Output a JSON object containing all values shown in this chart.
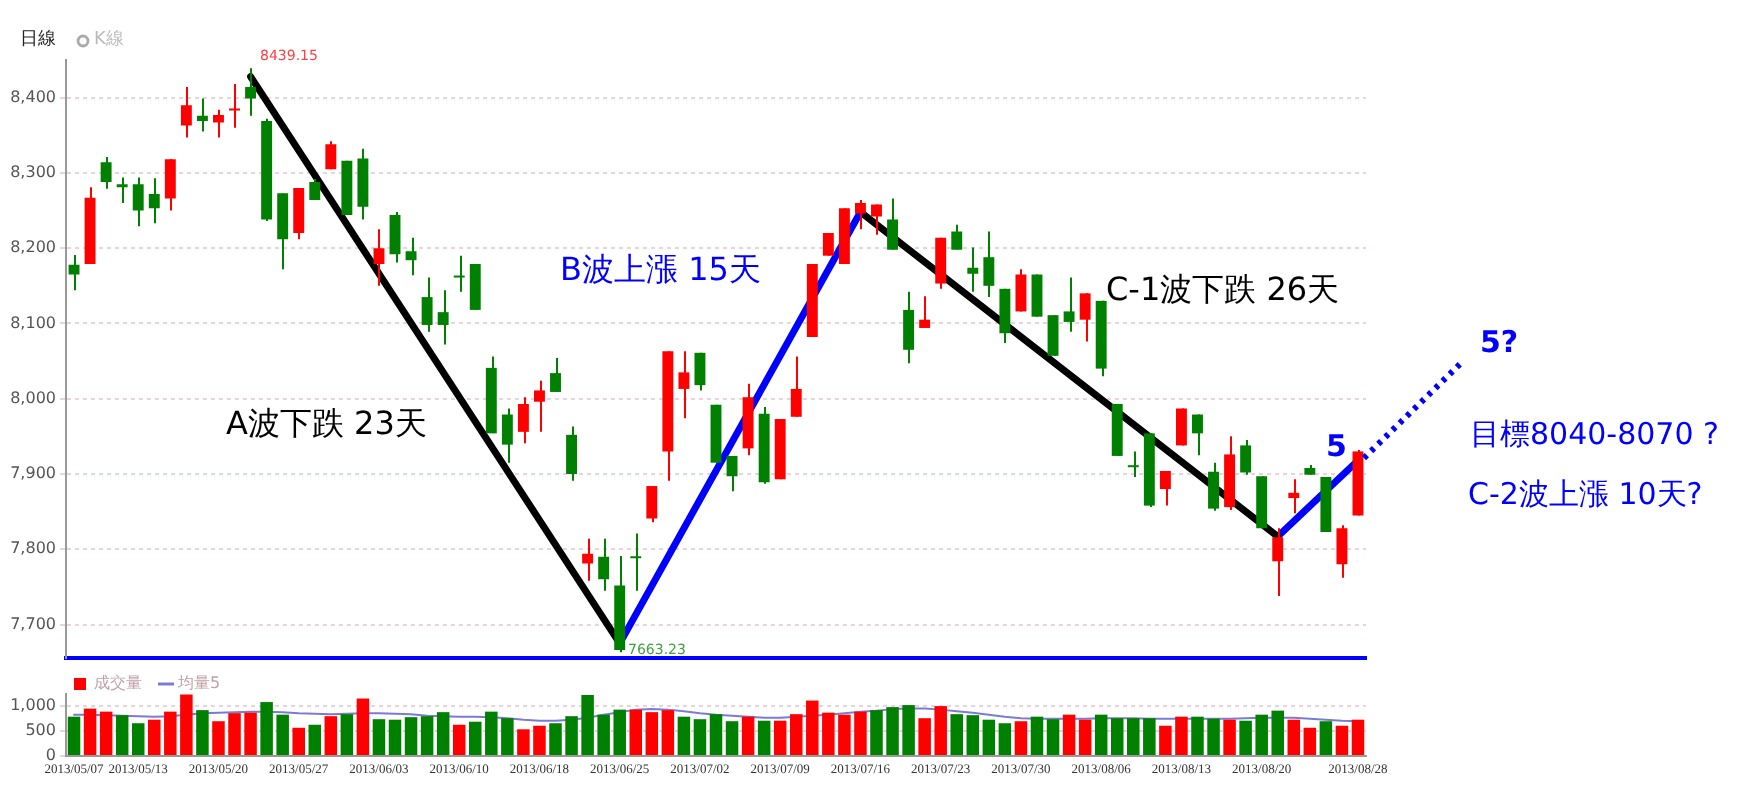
{
  "chart_data": [
    {
      "type": "candlestick",
      "title": "日線",
      "subtitle": "K線",
      "categories": [
        null,
        null,
        null,
        null,
        null,
        null,
        null,
        null,
        null,
        null,
        null,
        null,
        null,
        null,
        null,
        null,
        null,
        null,
        null,
        null,
        null,
        null,
        null,
        null,
        null,
        null,
        null,
        null,
        null,
        null,
        null,
        null,
        null,
        null,
        null,
        null,
        null,
        null,
        null,
        null,
        null,
        null,
        null,
        null,
        null,
        null,
        null,
        null,
        null,
        null,
        null,
        null,
        null,
        null,
        null,
        null,
        null,
        null,
        null,
        null,
        null,
        null,
        null,
        null,
        null,
        null,
        null,
        null,
        null,
        null,
        null,
        null,
        null,
        null,
        null,
        null,
        null,
        null,
        null,
        null,
        null
      ],
      "ohlc": [
        [
          8178,
          8191,
          8144,
          8165
        ],
        [
          8179,
          8281,
          8179,
          8267
        ],
        [
          8314,
          8321,
          8279,
          8288
        ],
        [
          8285,
          8294,
          8260,
          8281
        ],
        [
          8285,
          8294,
          8229,
          8250
        ],
        [
          8272,
          8293,
          8233,
          8253
        ],
        [
          8266,
          8318,
          8250,
          8318
        ],
        [
          8363,
          8414,
          8347,
          8390
        ],
        [
          8376,
          8399,
          8355,
          8369
        ],
        [
          8367,
          8384,
          8347,
          8377
        ],
        [
          8383,
          8418,
          8360,
          8384
        ],
        [
          8414,
          8439.15,
          8376,
          8399
        ],
        [
          8369,
          8372,
          8236,
          8238
        ],
        [
          8273,
          8273,
          8172,
          8212
        ],
        [
          8220,
          8280,
          8212,
          8280
        ],
        [
          8288,
          8292,
          8264,
          8264
        ],
        [
          8305,
          8342,
          8305,
          8338
        ],
        [
          8316,
          8316,
          8244,
          8244
        ],
        [
          8319,
          8332,
          8238,
          8255
        ],
        [
          8179,
          8225,
          8150,
          8200
        ],
        [
          8244,
          8248,
          8181,
          8192
        ],
        [
          8196,
          8214,
          8164,
          8184
        ],
        [
          8135,
          8161,
          8089,
          8098
        ],
        [
          8115,
          8144,
          8072,
          8098
        ],
        [
          8162,
          8190,
          8142,
          8161
        ],
        [
          8179,
          8179,
          8118,
          8118
        ],
        [
          8041,
          8056,
          7954,
          7954
        ],
        [
          7979,
          7987,
          7915,
          7939
        ],
        [
          7956,
          8002,
          7941,
          7993
        ],
        [
          7996,
          8024,
          7956,
          8011
        ],
        [
          8034,
          8054,
          8009,
          8009
        ],
        [
          7952,
          7963,
          7891,
          7900
        ],
        [
          7781,
          7814,
          7758,
          7794
        ],
        [
          7790,
          7814,
          7745,
          7760
        ],
        [
          7752,
          7791,
          7663.23,
          7666
        ],
        [
          7789,
          7821,
          7745,
          7788
        ],
        [
          7841,
          7884,
          7836,
          7884
        ],
        [
          7930,
          8063,
          7891,
          8063
        ],
        [
          8013,
          8063,
          7974,
          8035
        ],
        [
          8061,
          8061,
          8011,
          8018
        ],
        [
          7992,
          7992,
          7915,
          7915
        ],
        [
          7924,
          7924,
          7877,
          7897
        ],
        [
          7934,
          8020,
          7925,
          8002
        ],
        [
          7980,
          7989,
          7887,
          7889
        ],
        [
          7893,
          7973,
          7893,
          7973
        ],
        [
          7976,
          8056,
          7976,
          8013
        ],
        [
          8082,
          8179,
          8082,
          8179
        ],
        [
          8190,
          8220,
          8190,
          8220
        ],
        [
          8179,
          8253,
          8179,
          8253
        ],
        [
          8246,
          8264,
          8225,
          8260
        ],
        [
          8242,
          8258,
          8218,
          8258
        ],
        [
          8238,
          8266,
          8198,
          8198
        ],
        [
          8118,
          8142,
          8047,
          8065
        ],
        [
          8094,
          8136,
          8094,
          8105
        ],
        [
          8153,
          8214,
          8146,
          8214
        ],
        [
          8222,
          8231,
          8198,
          8198
        ],
        [
          8174,
          8201,
          8142,
          8166
        ],
        [
          8188,
          8222,
          8135,
          8150
        ],
        [
          8146,
          8146,
          8074,
          8087
        ],
        [
          8116,
          8172,
          8116,
          8165
        ],
        [
          8165,
          8165,
          8109,
          8109
        ],
        [
          8111,
          8111,
          8057,
          8057
        ],
        [
          8116,
          8161,
          8089,
          8102
        ],
        [
          8105,
          8140,
          8076,
          8140
        ],
        [
          8130,
          8130,
          8030,
          8040
        ],
        [
          7993,
          7993,
          7924,
          7924
        ],
        [
          7910,
          7930,
          7896,
          7909
        ],
        [
          7954,
          7954,
          7856,
          7858
        ],
        [
          7880,
          7904,
          7858,
          7904
        ],
        [
          7938,
          7987,
          7938,
          7987
        ],
        [
          7979,
          7979,
          7925,
          7954
        ],
        [
          7903,
          7915,
          7851,
          7854
        ],
        [
          7856,
          7950,
          7852,
          7926
        ],
        [
          7938,
          7945,
          7899,
          7902
        ],
        [
          7897,
          7897,
          7828,
          7828
        ],
        [
          7784,
          7828,
          7738,
          7816
        ],
        [
          7868,
          7893,
          7848,
          7875
        ],
        [
          7908,
          7912,
          7899,
          7899
        ],
        [
          7896,
          7896,
          7823,
          7823
        ],
        [
          7780,
          7832,
          7762,
          7828
        ],
        [
          7845,
          7932,
          7845,
          7930
        ]
      ],
      "colors": [
        "#008000",
        "#ff0000",
        "#008000",
        "#008000",
        "#008000",
        "#008000",
        "#ff0000",
        "#ff0000",
        "#008000",
        "#ff0000",
        "#ff0000",
        "#008000",
        "#008000",
        "#008000",
        "#ff0000",
        "#008000",
        "#ff0000",
        "#008000",
        "#008000",
        "#ff0000",
        "#008000",
        "#008000",
        "#008000",
        "#008000",
        "#008000",
        "#008000",
        "#008000",
        "#008000",
        "#ff0000",
        "#ff0000",
        "#008000",
        "#008000",
        "#ff0000",
        "#008000",
        "#008000",
        "#008000",
        "#ff0000",
        "#ff0000",
        "#ff0000",
        "#008000",
        "#008000",
        "#008000",
        "#ff0000",
        "#008000",
        "#ff0000",
        "#ff0000",
        "#ff0000",
        "#ff0000",
        "#ff0000",
        "#ff0000",
        "#ff0000",
        "#008000",
        "#008000",
        "#ff0000",
        "#ff0000",
        "#008000",
        "#008000",
        "#008000",
        "#008000",
        "#ff0000",
        "#008000",
        "#008000",
        "#008000",
        "#ff0000",
        "#008000",
        "#008000",
        "#008000",
        "#008000",
        "#ff0000",
        "#ff0000",
        "#008000",
        "#008000",
        "#ff0000",
        "#008000",
        "#008000",
        "#ff0000",
        "#ff0000",
        "#008000",
        "#008000",
        "#ff0000",
        "#ff0000"
      ],
      "series": [
        {
          "type": "line",
          "color": "#000000",
          "values": [
            null,
            null,
            null,
            null,
            null,
            null,
            null,
            null,
            null,
            null,
            null,
            8428,
            null,
            null,
            null,
            null,
            null,
            null,
            null,
            null,
            null,
            null,
            null,
            null,
            null,
            null,
            null,
            null,
            null,
            null,
            null,
            null,
            null,
            null,
            7675,
            null,
            null,
            null,
            null,
            null,
            null,
            null,
            null,
            null,
            null,
            null,
            null,
            null,
            null,
            null,
            null,
            null,
            null,
            null,
            null,
            null,
            null,
            null,
            null,
            null,
            null,
            null,
            null,
            null,
            null,
            null,
            null,
            null,
            null,
            null,
            null,
            null,
            null,
            null,
            null,
            null,
            null,
            null,
            null,
            null,
            null
          ]
        },
        {
          "type": "line",
          "color": "#0000ff",
          "values": [
            null,
            null,
            null,
            null,
            null,
            null,
            null,
            null,
            null,
            null,
            null,
            null,
            null,
            null,
            null,
            null,
            null,
            null,
            null,
            null,
            null,
            null,
            null,
            null,
            null,
            null,
            null,
            null,
            null,
            null,
            null,
            null,
            null,
            null,
            7675,
            null,
            null,
            null,
            null,
            null,
            null,
            null,
            null,
            null,
            null,
            null,
            null,
            null,
            null,
            8248,
            null,
            null,
            null,
            null,
            null,
            null,
            null,
            null,
            null,
            null,
            null,
            null,
            null,
            null,
            null,
            null,
            null,
            null,
            null,
            null,
            null,
            null,
            null,
            null,
            null,
            null,
            null,
            null,
            null,
            null,
            null
          ]
        },
        {
          "type": "line",
          "color": "#000000",
          "values": [
            null,
            null,
            null,
            null,
            null,
            null,
            null,
            null,
            null,
            null,
            null,
            null,
            null,
            null,
            null,
            null,
            null,
            null,
            null,
            null,
            null,
            null,
            null,
            null,
            null,
            null,
            null,
            null,
            null,
            null,
            null,
            null,
            null,
            null,
            null,
            null,
            null,
            null,
            null,
            null,
            null,
            null,
            null,
            null,
            null,
            null,
            null,
            null,
            null,
            8248,
            null,
            null,
            null,
            null,
            null,
            null,
            null,
            null,
            null,
            null,
            null,
            null,
            null,
            null,
            null,
            null,
            null,
            null,
            null,
            null,
            null,
            null,
            null,
            null,
            null,
            7817,
            null,
            null,
            null,
            null,
            null
          ]
        },
        {
          "type": "line",
          "color": "#0000ff",
          "values": [
            null,
            null,
            null,
            null,
            null,
            null,
            null,
            null,
            null,
            null,
            null,
            null,
            null,
            null,
            null,
            null,
            null,
            null,
            null,
            null,
            null,
            null,
            null,
            null,
            null,
            null,
            null,
            null,
            null,
            null,
            null,
            null,
            null,
            null,
            null,
            null,
            null,
            null,
            null,
            null,
            null,
            null,
            null,
            null,
            null,
            null,
            null,
            null,
            null,
            null,
            null,
            null,
            null,
            null,
            null,
            null,
            null,
            null,
            null,
            null,
            null,
            null,
            null,
            null,
            null,
            null,
            null,
            null,
            null,
            null,
            null,
            null,
            null,
            null,
            null,
            7817,
            null,
            null,
            null,
            null,
            7918
          ]
        }
      ],
      "ylim": [
        7655,
        8450
      ],
      "yticks": [
        {
          "value": 7700,
          "label": "7,700"
        },
        {
          "value": 7800,
          "label": "7,800"
        },
        {
          "value": 7900,
          "label": "7,900"
        },
        {
          "value": 8000,
          "label": "8,000"
        },
        {
          "value": 8100,
          "label": "8,100"
        },
        {
          "value": 8200,
          "label": "8,200"
        },
        {
          "value": 8300,
          "label": "8,300"
        },
        {
          "value": 8400,
          "label": "8,400"
        }
      ],
      "grid": "y",
      "tick_labels": "y",
      "annotations": [
        "A波下跌 23天",
        "B波上漲 15天",
        "C-1波下跌 26天",
        "5",
        "5?",
        "目標8040-8070 ?",
        "C-2波上漲 10天?",
        "8439.15",
        "7663.23"
      ]
    },
    {
      "type": "bar",
      "categories": [
        "2013/05/07",
        null,
        null,
        null,
        "2013/05/13",
        null,
        null,
        null,
        null,
        "2013/05/20",
        null,
        null,
        null,
        null,
        "2013/05/27",
        null,
        null,
        null,
        null,
        "2013/06/03",
        null,
        null,
        null,
        null,
        "2013/06/10",
        null,
        null,
        null,
        null,
        "2013/06/18",
        null,
        null,
        null,
        null,
        "2013/06/25",
        null,
        null,
        null,
        null,
        "2013/07/02",
        null,
        null,
        null,
        null,
        "2013/07/09",
        null,
        null,
        null,
        null,
        "2013/07/16",
        null,
        null,
        null,
        null,
        "2013/07/23",
        null,
        null,
        null,
        null,
        "2013/07/30",
        null,
        null,
        null,
        null,
        "2013/08/06",
        null,
        null,
        null,
        null,
        "2013/08/13",
        null,
        null,
        null,
        null,
        "2013/08/20",
        null,
        null,
        null,
        null,
        null,
        "2013/08/28"
      ],
      "series": [
        {
          "name": "成交量",
          "type": "bar",
          "color": "#ff0000",
          "values": [
            780,
            940,
            880,
            810,
            650,
            720,
            880,
            1220,
            910,
            690,
            850,
            860,
            1070,
            820,
            560,
            620,
            790,
            830,
            1140,
            730,
            720,
            770,
            790,
            870,
            620,
            680,
            880,
            750,
            530,
            600,
            650,
            790,
            1210,
            820,
            920,
            920,
            870,
            910,
            780,
            730,
            830,
            690,
            780,
            700,
            700,
            830,
            1100,
            860,
            820,
            880,
            910,
            970,
            1010,
            750,
            990,
            830,
            810,
            720,
            650,
            690,
            780,
            730,
            820,
            720,
            820,
            750,
            750,
            750,
            600,
            780,
            780,
            740,
            720,
            700,
            820,
            900,
            720,
            560,
            690,
            600,
            720
          ],
          "colors": [
            "#008000",
            "#ff0000",
            "#ff0000",
            "#008000",
            "#008000",
            "#ff0000",
            "#ff0000",
            "#ff0000",
            "#008000",
            "#ff0000",
            "#ff0000",
            "#ff0000",
            "#008000",
            "#008000",
            "#ff0000",
            "#008000",
            "#ff0000",
            "#008000",
            "#ff0000",
            "#008000",
            "#008000",
            "#008000",
            "#008000",
            "#008000",
            "#ff0000",
            "#008000",
            "#008000",
            "#008000",
            "#ff0000",
            "#ff0000",
            "#008000",
            "#008000",
            "#008000",
            "#008000",
            "#008000",
            "#ff0000",
            "#ff0000",
            "#ff0000",
            "#008000",
            "#008000",
            "#008000",
            "#008000",
            "#ff0000",
            "#008000",
            "#ff0000",
            "#ff0000",
            "#ff0000",
            "#ff0000",
            "#ff0000",
            "#ff0000",
            "#008000",
            "#008000",
            "#008000",
            "#ff0000",
            "#ff0000",
            "#008000",
            "#008000",
            "#008000",
            "#008000",
            "#ff0000",
            "#008000",
            "#008000",
            "#ff0000",
            "#ff0000",
            "#008000",
            "#008000",
            "#008000",
            "#008000",
            "#ff0000",
            "#ff0000",
            "#008000",
            "#008000",
            "#ff0000",
            "#008000",
            "#008000",
            "#008000",
            "#ff0000",
            "#ff0000",
            "#008000",
            "#ff0000",
            "#ff0000"
          ]
        },
        {
          "name": "均量5",
          "type": "line",
          "color": "#7b7bd6",
          "values": [
            820,
            820,
            810,
            800,
            790,
            780,
            790,
            820,
            850,
            860,
            870,
            880,
            880,
            870,
            850,
            840,
            830,
            840,
            850,
            850,
            840,
            830,
            800,
            790,
            780,
            780,
            770,
            750,
            720,
            700,
            700,
            720,
            760,
            820,
            870,
            920,
            930,
            920,
            890,
            850,
            820,
            800,
            780,
            760,
            760,
            780,
            800,
            820,
            850,
            880,
            900,
            930,
            940,
            940,
            920,
            890,
            860,
            820,
            780,
            750,
            740,
            740,
            740,
            740,
            750,
            750,
            750,
            740,
            740,
            740,
            740,
            740,
            740,
            750,
            760,
            760,
            760,
            740,
            720,
            700,
            690
          ]
        }
      ],
      "ylim": [
        0,
        1230
      ],
      "yticks": [
        0,
        500,
        {
          "value": 1000,
          "label": "1,000"
        }
      ],
      "grid": "y",
      "legend": "top left"
    }
  ]
}
